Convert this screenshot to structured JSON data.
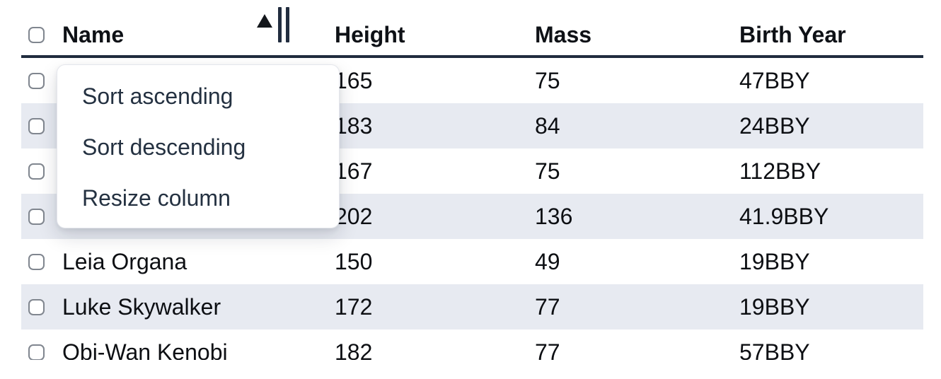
{
  "table": {
    "columns": [
      {
        "label": "Name",
        "sorted": true
      },
      {
        "label": "Height"
      },
      {
        "label": "Mass"
      },
      {
        "label": "Birth Year"
      }
    ],
    "sort": {
      "column": "Name",
      "direction": "ascending"
    },
    "rows": [
      {
        "name": "",
        "height": "165",
        "mass": "75",
        "birth_year": "47BBY"
      },
      {
        "name": "",
        "height": "183",
        "mass": "84",
        "birth_year": "24BBY"
      },
      {
        "name": "",
        "height": "167",
        "mass": "75",
        "birth_year": "112BBY"
      },
      {
        "name": "",
        "height": "202",
        "mass": "136",
        "birth_year": "41.9BBY"
      },
      {
        "name": "Leia Organa",
        "height": "150",
        "mass": "49",
        "birth_year": "19BBY"
      },
      {
        "name": "Luke Skywalker",
        "height": "172",
        "mass": "77",
        "birth_year": "19BBY"
      },
      {
        "name": "Obi-Wan Kenobi",
        "height": "182",
        "mass": "77",
        "birth_year": "57BBY"
      }
    ]
  },
  "menu": {
    "items": [
      "Sort ascending",
      "Sort descending",
      "Resize column"
    ]
  },
  "icons": {
    "sort_indicator": "sort-ascending-triangle",
    "resize_handle": "column-resize-double-bar"
  },
  "colors": {
    "stripe": "#e7eaf1",
    "header_border": "#202c3e",
    "row_text": "#0d0f13",
    "menu_text": "#243141",
    "checkbox_border": "#80868f"
  }
}
